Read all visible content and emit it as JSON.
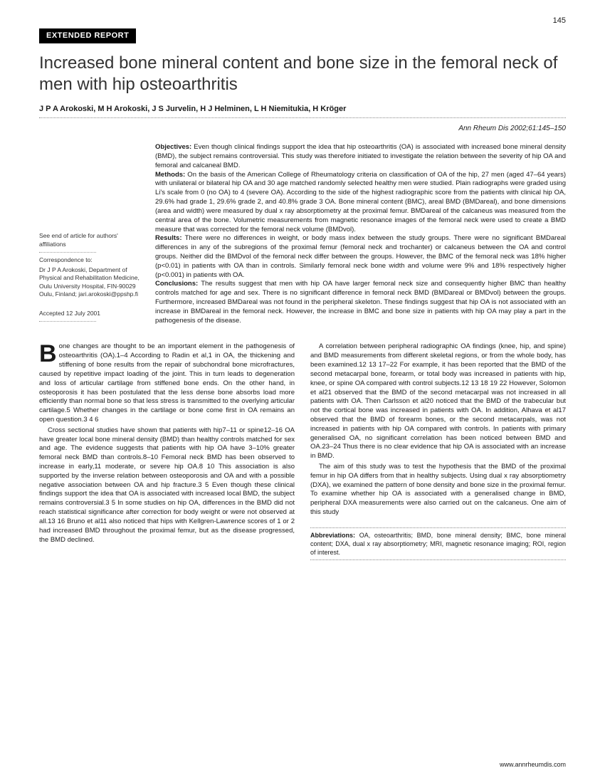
{
  "page_number": "145",
  "category": "EXTENDED REPORT",
  "title": "Increased bone mineral content and bone size in the femoral neck of men with hip osteoarthritis",
  "authors": "J P A Arokoski, M H Arokoski, J S Jurvelin, H J Helminen, L H Niemitukia, H Kröger",
  "citation": "Ann Rheum Dis 2002;61:145–150",
  "sidebar": {
    "see_end": "See end of article for authors' affiliations",
    "corr_label": "Correspondence to:",
    "corr_body": "Dr J P A Arokoski, Department of Physical and Rehabilitation Medicine, Oulu University Hospital, FIN-90029 Oulu, Finland; jari.arokoski@ppshp.fi",
    "accepted": "Accepted 12 July 2001"
  },
  "abstract": {
    "objectives_label": "Objectives:",
    "objectives": " Even though clinical findings support the idea that hip osteoarthritis (OA) is associated with increased bone mineral density (BMD), the subject remains controversial. This study was therefore initiated to investigate the relation between the severity of hip OA and femoral and calcaneal BMD.",
    "methods_label": "Methods:",
    "methods": " On the basis of the American College of Rheumatology criteria on classification of OA of the hip, 27 men (aged 47–64 years) with unilateral or bilateral hip OA and 30 age matched randomly selected healthy men were studied. Plain radiographs were graded using Li's scale from 0 (no OA) to 4 (severe OA). According to the side of the highest radiographic score from the patients with clinical hip OA, 29.6% had grade 1, 29.6% grade 2, and 40.8% grade 3 OA. Bone mineral content (BMC), areal BMD (BMDareal), and bone dimensions (area and width) were measured by dual x ray absorptiometry at the proximal femur. BMDareal of the calcaneus was measured from the central area of the bone. Volumetric measurements from magnetic resonance images of the femoral neck were used to create a BMD measure that was corrected for the femoral neck volume (BMDvol).",
    "results_label": "Results:",
    "results": " There were no differences in weight, or body mass index between the study groups. There were no significant BMDareal differences in any of the subregions of the proximal femur (femoral neck and trochanter) or calcaneus between the OA and control groups. Neither did the BMDvol of the femoral neck differ between the groups. However, the BMC of the femoral neck was 18% higher (p<0.01) in patients with OA than in controls. Similarly femoral neck bone width and volume were 9% and 18% respectively higher (p<0.001) in patients with OA.",
    "conclusions_label": "Conclusions:",
    "conclusions": " The results suggest that men with hip OA have larger femoral neck size and consequently higher BMC than healthy controls matched for age and sex. There is no significant difference in femoral neck BMD (BMDareal or BMDvol) between the groups. Furthermore, increased BMDareal was not found in the peripheral skeleton. These findings suggest that hip OA is not associated with an increase in BMDareal in the femoral neck. However, the increase in BMC and bone size in patients with hip OA may play a part in the pathogenesis of the disease."
  },
  "body": {
    "p1_first": "B",
    "p1": "one changes are thought to be an important element in the pathogenesis of osteoarthritis (OA).1–4 According to Radin et al,1 in OA, the thickening and stiffening of bone results from the repair of subchondral bone microfractures, caused by repetitive impact loading of the joint. This in turn leads to degeneration and loss of articular cartilage from stiffened bone ends. On the other hand, in osteoporosis it has been postulated that the less dense bone absorbs load more efficiently than normal bone so that less stress is transmitted to the overlying articular cartilage.5 Whether changes in the cartilage or bone come first in OA remains an open question.3 4 6",
    "p2": "Cross sectional studies have shown that patients with hip7–11 or spine12–16 OA have greater local bone mineral density (BMD) than healthy controls matched for sex and age. The evidence suggests that patients with hip OA have 3–10% greater femoral neck BMD than controls.8–10 Femoral neck BMD has been observed to increase in early,11 moderate, or severe hip OA.8 10 This association is also supported by the inverse relation between osteoporosis and OA and with a possible negative association between OA and hip fracture.3 5 Even though these clinical findings support the idea that OA is associated with increased local BMD, the subject remains controversial.3 5 In some studies on hip OA, differences in the BMD did not reach statistical significance after correction for body weight or were not observed at all.13 16 Bruno et al11 also noticed that hips with Kellgren-Lawrence scores of 1 or 2 had increased BMD throughout the proximal femur, but as the disease progressed, the BMD declined.",
    "p3": "A correlation between peripheral radiographic OA findings (knee, hip, and spine) and BMD measurements from different skeletal regions, or from the whole body, has been examined.12 13 17–22 For example, it has been reported that the BMD of the second metacarpal bone, forearm, or total body was increased in patients with hip, knee, or spine OA compared with control subjects.12 13 18 19 22 However, Solomon et al21 observed that the BMD of the second metacarpal was not increased in all patients with OA. Then Carlsson et al20 noticed that the BMD of the trabecular but not the cortical bone was increased in patients with OA. In addition, Alhava et al17 observed that the BMD of forearm bones, or the second metacarpals, was not increased in patients with hip OA compared with controls. In patients with primary generalised OA, no significant correlation has been noticed between BMD and OA.23–24 Thus there is no clear evidence that hip OA is associated with an increase in BMD.",
    "p4": "The aim of this study was to test the hypothesis that the BMD of the proximal femur in hip OA differs from that in healthy subjects. Using dual x ray absorptiometry (DXA), we examined the pattern of bone density and bone size in the proximal femur. To examine whether hip OA is associated with a generalised change in BMD, peripheral DXA measurements were also carried out on the calcaneus. One aim of this study"
  },
  "abbrev": {
    "label": "Abbreviations:",
    "text": " OA, osteoarthritis; BMD, bone mineral density; BMC, bone mineral content; DXA, dual x ray absorptiometry; MRI, magnetic resonance imaging; ROI, region of interest."
  },
  "footer": "www.annrheumdis.com"
}
